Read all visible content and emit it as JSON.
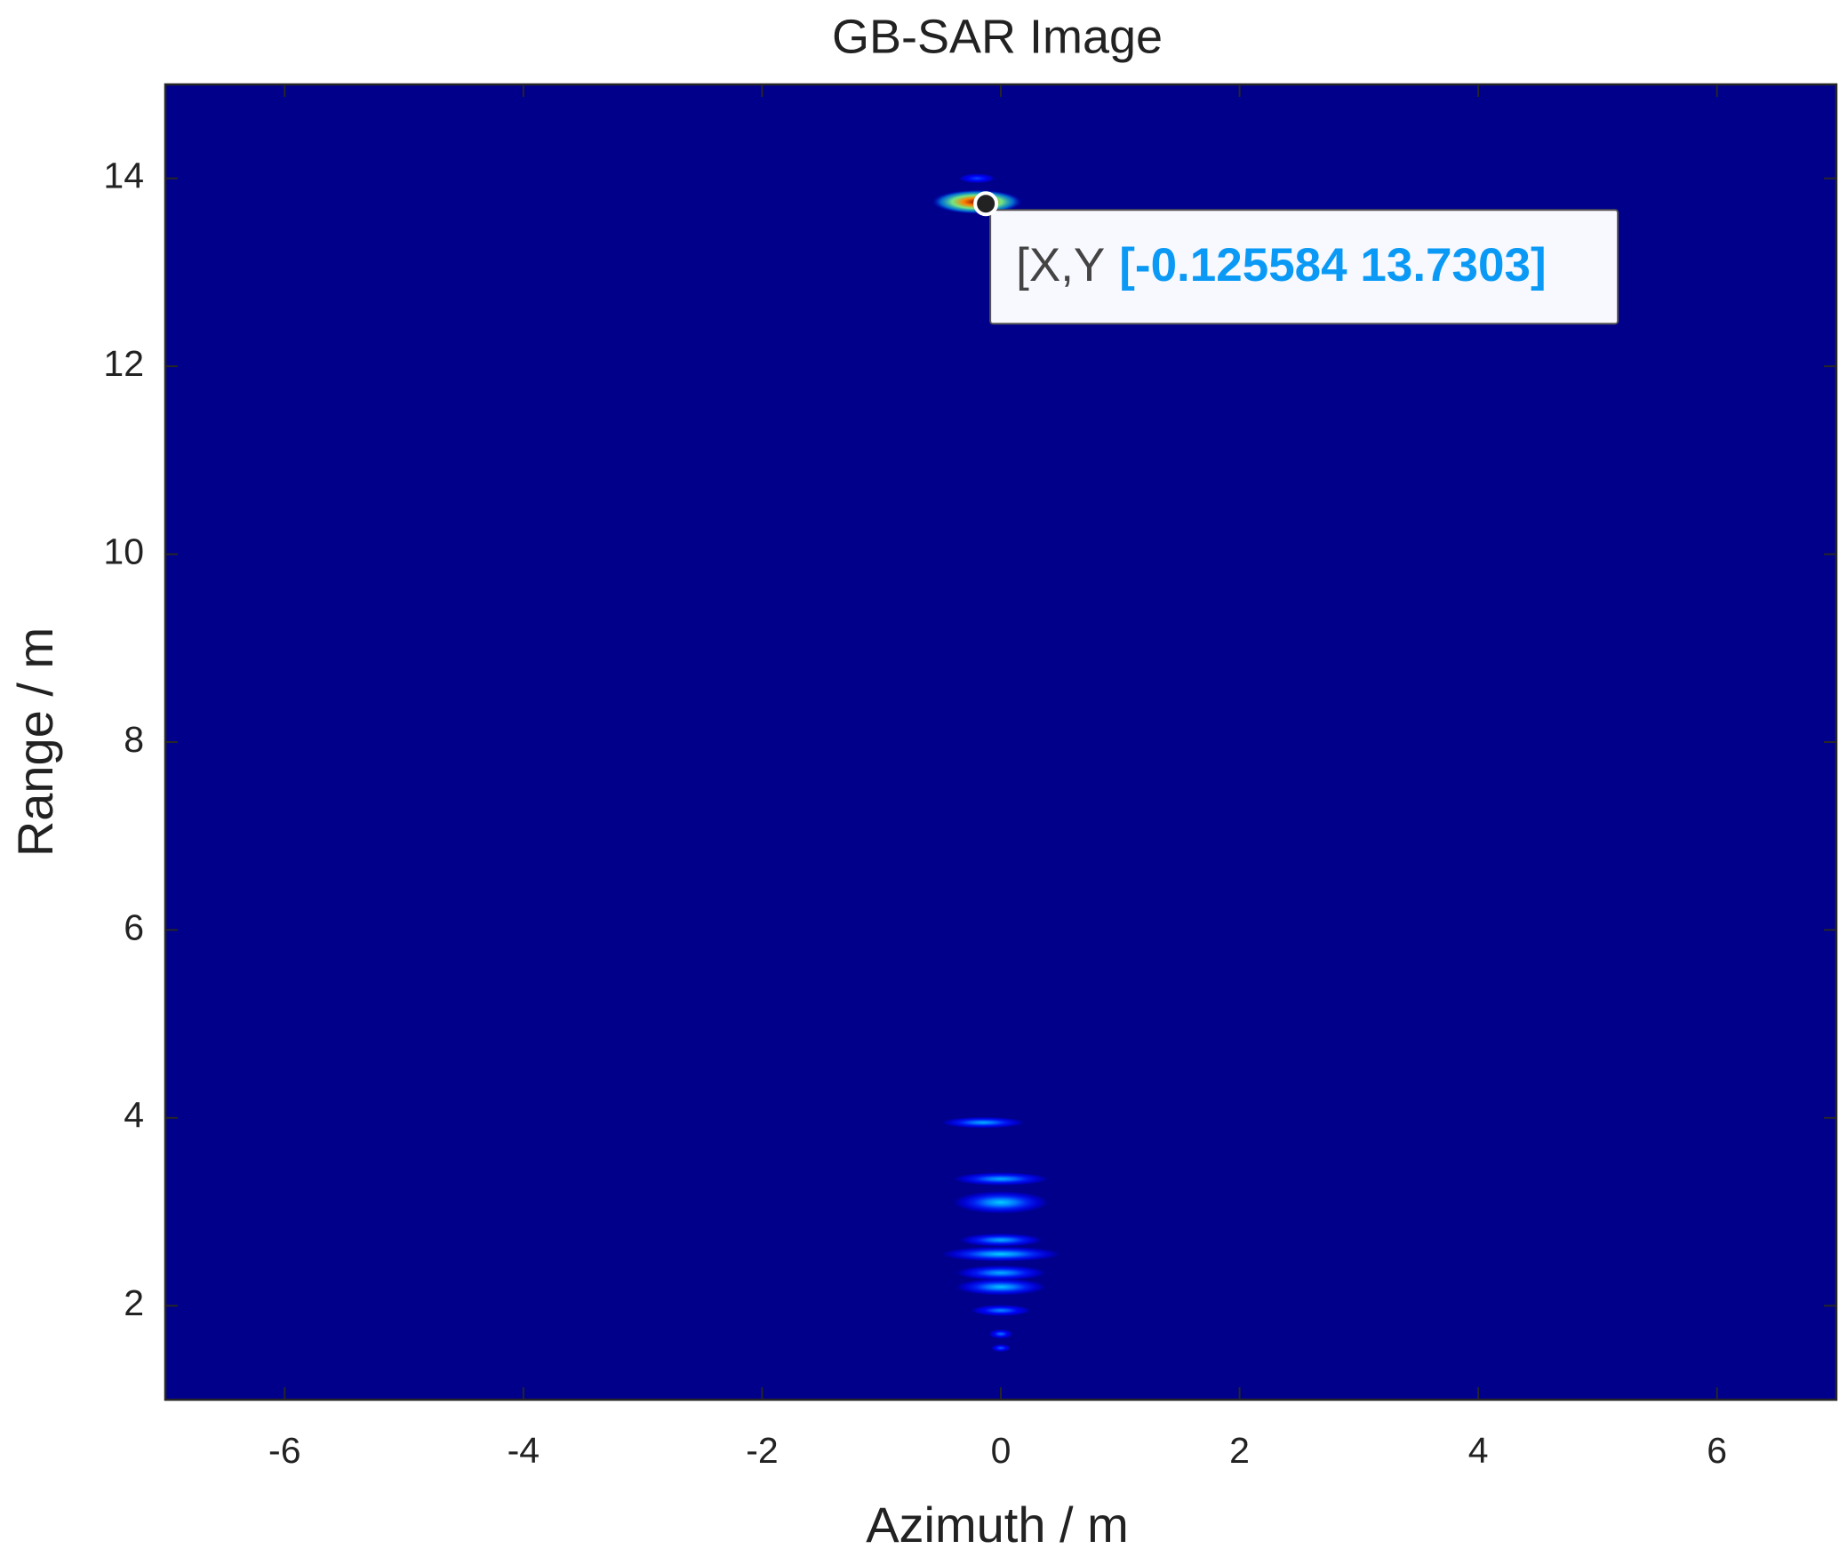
{
  "chart_data": {
    "type": "heatmap",
    "title": "GB-SAR Image",
    "xlabel": "Azimuth / m",
    "ylabel": "Range / m",
    "xlim": [
      -7,
      7
    ],
    "ylim": [
      1,
      15
    ],
    "xticks": [
      -6,
      -4,
      -2,
      0,
      2,
      4,
      6
    ],
    "yticks": [
      2,
      4,
      6,
      8,
      10,
      12,
      14
    ],
    "colormap": "jet",
    "background_color": "#00008a",
    "spots": [
      {
        "x": -0.2,
        "y": 13.75,
        "rx": 0.38,
        "ry": 0.13,
        "intensity": 1.0
      },
      {
        "x": -0.2,
        "y": 14.0,
        "rx": 0.15,
        "ry": 0.05,
        "intensity": 0.2
      },
      {
        "x": -0.15,
        "y": 3.95,
        "rx": 0.35,
        "ry": 0.06,
        "intensity": 0.3
      },
      {
        "x": 0.0,
        "y": 3.35,
        "rx": 0.4,
        "ry": 0.07,
        "intensity": 0.3
      },
      {
        "x": 0.0,
        "y": 3.1,
        "rx": 0.4,
        "ry": 0.12,
        "intensity": 0.33
      },
      {
        "x": 0.0,
        "y": 2.7,
        "rx": 0.35,
        "ry": 0.07,
        "intensity": 0.3
      },
      {
        "x": 0.0,
        "y": 2.55,
        "rx": 0.5,
        "ry": 0.08,
        "intensity": 0.33
      },
      {
        "x": 0.0,
        "y": 2.35,
        "rx": 0.38,
        "ry": 0.08,
        "intensity": 0.3
      },
      {
        "x": 0.0,
        "y": 2.2,
        "rx": 0.38,
        "ry": 0.09,
        "intensity": 0.32
      },
      {
        "x": 0.0,
        "y": 1.95,
        "rx": 0.25,
        "ry": 0.06,
        "intensity": 0.26
      },
      {
        "x": 0.0,
        "y": 1.7,
        "rx": 0.1,
        "ry": 0.05,
        "intensity": 0.24
      },
      {
        "x": 0.0,
        "y": 1.55,
        "rx": 0.08,
        "ry": 0.04,
        "intensity": 0.22
      }
    ],
    "datatip": {
      "label": "[X,Y",
      "x": -0.125584,
      "y": 13.7303,
      "value_label": "[-0.125584 13.7303]",
      "value_color": "#0a9af5"
    }
  }
}
